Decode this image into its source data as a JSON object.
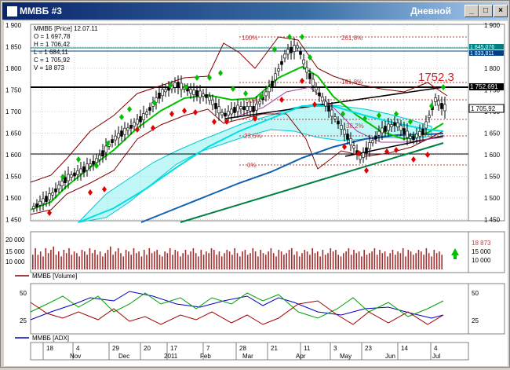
{
  "window": {
    "title": "ММВБ #3",
    "period": "Дневной",
    "btn_min": "_",
    "btn_max": "□",
    "btn_close": "×"
  },
  "info": {
    "header": "ММВБ [Price] 12.07.11",
    "open": "O = 1 697,78",
    "high": "H = 1 706,42",
    "low": "L = 1 684,11",
    "close": "C = 1 705,92",
    "volume": "V = 18 873"
  },
  "price_axis": {
    "ticks": [
      "1 900",
      "1 850",
      "1 800",
      "1 750",
      "1 700",
      "1 650",
      "1 600",
      "1 550",
      "1 500",
      "1 450"
    ],
    "labels": [
      "1 900",
      "1 850",
      "1 800",
      "1 750",
      "1 700",
      "1 650",
      "1 600",
      "1 550",
      "1 500",
      "1 450"
    ],
    "flag_1": "1 845,076",
    "flag_2": "1 833,811",
    "flag_3": "1 752,691",
    "flag_4": "1 705,92"
  },
  "annotations": {
    "peak_value": "1752,3",
    "fib_100": "100%",
    "fib_261": "261,8%",
    "fib_161": "161,8%",
    "fib_50": "50%",
    "fib_38": "38,2%",
    "fib_23": "23,6%",
    "fib_0": "0%"
  },
  "volume_panel": {
    "legend": "ММВБ [Volume]",
    "ticks": [
      "20 000",
      "15 000",
      "10 000"
    ],
    "right_labels": [
      "18 873",
      "15 000",
      "10 000"
    ],
    "values": [
      13,
      17,
      13,
      15,
      12,
      17,
      14,
      16,
      18,
      13,
      15,
      12,
      16,
      14,
      17,
      13,
      15,
      14,
      12,
      16,
      15,
      13,
      17,
      14,
      16,
      13,
      15,
      12,
      14,
      16,
      18,
      13,
      15,
      17,
      14,
      12,
      16,
      15,
      13,
      17,
      14,
      15,
      12,
      16,
      13,
      17,
      14,
      15,
      16,
      13,
      12,
      15,
      14,
      17,
      13,
      16,
      15,
      12,
      14,
      16,
      13,
      15,
      17,
      14,
      12,
      16,
      13,
      15,
      14,
      17,
      16,
      13,
      15,
      12,
      14,
      16,
      15,
      13,
      17,
      14,
      12,
      15,
      16,
      13,
      14,
      17,
      15,
      12,
      16,
      14,
      13,
      15,
      17,
      14,
      12,
      16,
      15,
      13,
      14,
      16,
      17,
      13,
      15,
      12,
      14,
      16,
      15,
      13,
      17,
      14,
      15,
      12,
      16,
      13,
      14,
      17,
      15,
      16,
      13,
      12,
      14,
      15,
      17,
      13,
      16,
      14,
      15,
      12,
      16,
      13,
      14,
      15,
      17,
      13,
      16,
      14,
      15,
      12,
      14,
      16,
      13,
      15,
      14,
      17,
      12,
      16,
      15,
      13,
      14,
      16,
      15,
      13,
      17,
      14,
      12,
      16,
      14,
      15,
      13,
      16,
      15,
      14,
      13,
      15,
      16,
      14
    ]
  },
  "adx_panel": {
    "legend": "ММВБ [ADX]",
    "ticks": [
      "50",
      "25"
    ],
    "right_labels": [
      "50",
      "25"
    ]
  },
  "date_axis": {
    "days": [
      "18",
      "4",
      "29",
      "20",
      "17",
      "7",
      "28",
      "21",
      "11",
      "3",
      "23",
      "14",
      "4"
    ],
    "months": [
      "Nov",
      "Dec",
      "2011",
      "Feb",
      "Mar",
      "Apr",
      "May",
      "Jun",
      "Jul"
    ]
  },
  "colors": {
    "up_arrow": "#00c000",
    "down_arrow": "#e00000",
    "cloud": "#00e5e5",
    "ma_green": "#00c000",
    "ma_blue": "#1060b0",
    "channel": "#800000",
    "trend": "#008040",
    "fib": "#c04040"
  }
}
